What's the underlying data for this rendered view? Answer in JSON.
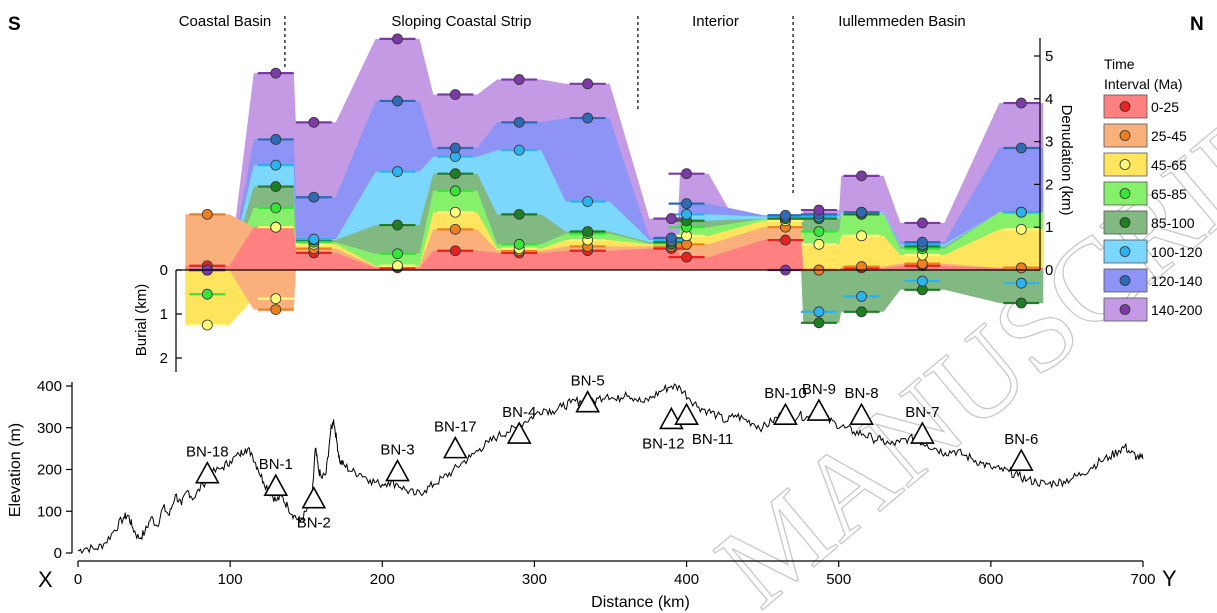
{
  "figure": {
    "corner_left": "S",
    "corner_right": "N",
    "profile_left_label": "X",
    "profile_right_label": "Y",
    "watermark": "MANUSCRIPT"
  },
  "chart_data": [
    {
      "type": "area",
      "regions": [
        "Coastal Basin",
        "Sloping Coastal Strip",
        "Interior",
        "Iullemmeden Basin"
      ],
      "region_boundaries_km": [
        136,
        368,
        470
      ],
      "ylabel_right": "Denudation (km)",
      "ylabel_left": "Burial (km)",
      "denudation_ticks": [
        "0",
        "1",
        "2",
        "3",
        "4",
        "5"
      ],
      "burial_ticks": [
        "0",
        "1",
        "2"
      ],
      "ylim_denudation": [
        0,
        5.4
      ],
      "ylim_burial": [
        0,
        2.3
      ],
      "legend_title": "Time Interval (Ma)",
      "legend_placement": "right",
      "series_order_bottom_to_top": [
        "0-25",
        "25-45",
        "45-65",
        "65-85",
        "85-100",
        "100-120",
        "120-140",
        "140-200"
      ],
      "colors": {
        "0-25": {
          "fill": "#ff8080",
          "dot": "#e8231f"
        },
        "25-45": {
          "fill": "#f9b07b",
          "dot": "#ef7e1c"
        },
        "45-65": {
          "fill": "#ffe45e",
          "dot": "#ffff7a"
        },
        "65-85": {
          "fill": "#86f06a",
          "dot": "#35e636"
        },
        "85-100": {
          "fill": "#82b882",
          "dot": "#1f7d22"
        },
        "100-120": {
          "fill": "#7bd7fb",
          "dot": "#2bb3ef"
        },
        "120-140": {
          "fill": "#8e93f6",
          "dot": "#2e6bb6"
        },
        "140-200": {
          "fill": "#c39ae3",
          "dot": "#7d3aa7"
        }
      },
      "samples": [
        {
          "x": 85,
          "denudation": [
            0.1,
            1.3,
            0,
            0,
            0,
            0,
            0,
            0
          ],
          "burial": [
            0,
            0,
            1.25,
            0.55,
            0,
            0,
            0,
            0
          ]
        },
        {
          "x": 130,
          "denudation": [
            1.0,
            1.0,
            1.0,
            1.45,
            1.95,
            2.45,
            3.05,
            4.6
          ],
          "burial": [
            0,
            0.9,
            0.65,
            0,
            0,
            0,
            0,
            0
          ]
        },
        {
          "x": 155,
          "denudation": [
            0.4,
            0.5,
            0.6,
            0.65,
            0.7,
            0.72,
            1.7,
            3.45
          ],
          "burial": [
            0,
            0,
            0,
            0,
            0,
            0,
            0,
            0
          ]
        },
        {
          "x": 210,
          "denudation": [
            0.05,
            0.08,
            0.1,
            0.38,
            1.05,
            2.3,
            3.95,
            5.4
          ],
          "burial": [
            0,
            0,
            0,
            0,
            0,
            0,
            0,
            0
          ]
        },
        {
          "x": 248,
          "denudation": [
            0.45,
            0.95,
            1.35,
            1.85,
            2.25,
            2.65,
            2.85,
            4.1
          ],
          "burial": [
            0,
            0,
            0,
            0,
            0,
            0,
            0,
            0
          ]
        },
        {
          "x": 290,
          "denudation": [
            0.4,
            0.45,
            0.5,
            0.6,
            1.3,
            2.8,
            3.45,
            4.45
          ],
          "burial": [
            0,
            0,
            0,
            0,
            0,
            0,
            0,
            0
          ]
        },
        {
          "x": 335,
          "denudation": [
            0.45,
            0.55,
            0.7,
            0.85,
            0.9,
            1.6,
            3.55,
            4.35
          ],
          "burial": [
            0,
            0,
            0,
            0,
            0,
            0,
            0,
            0
          ]
        },
        {
          "x": 390,
          "denudation": [
            0.5,
            0.55,
            0.6,
            0.62,
            0.65,
            0.7,
            0.75,
            1.2
          ],
          "burial": [
            0,
            0,
            0,
            0,
            0,
            0,
            0,
            0
          ]
        },
        {
          "x": 400,
          "denudation": [
            0.3,
            0.6,
            0.8,
            1.0,
            1.15,
            1.3,
            1.55,
            2.25
          ],
          "burial": [
            0,
            0,
            0,
            0,
            0,
            0,
            0,
            0
          ]
        },
        {
          "x": 465,
          "denudation": [
            0.7,
            1.0,
            1.15,
            1.2,
            1.2,
            1.25,
            1.28,
            0.0
          ],
          "burial": [
            0,
            0,
            0,
            0,
            0,
            0,
            0,
            0
          ]
        },
        {
          "x": 487,
          "denudation": [
            0.0,
            0.0,
            0.6,
            0.9,
            1.2,
            1.25,
            1.3,
            1.4
          ],
          "burial": [
            0,
            0,
            0,
            0,
            1.2,
            0.95,
            0,
            0
          ]
        },
        {
          "x": 515,
          "denudation": [
            0.05,
            0.08,
            0.8,
            1.3,
            1.3,
            1.35,
            1.35,
            2.2
          ],
          "burial": [
            0,
            0,
            0,
            0,
            0.95,
            0.6,
            0,
            0
          ]
        },
        {
          "x": 555,
          "denudation": [
            0.1,
            0.15,
            0.35,
            0.5,
            0.55,
            0.6,
            0.65,
            1.1
          ],
          "burial": [
            0,
            0,
            0,
            0,
            0.45,
            0.25,
            0,
            0
          ]
        },
        {
          "x": 620,
          "denudation": [
            0.05,
            0.05,
            0.95,
            1.35,
            1.35,
            1.35,
            2.85,
            3.9
          ],
          "burial": [
            0,
            0,
            0,
            0,
            0.75,
            0.3,
            0,
            0
          ]
        }
      ]
    },
    {
      "type": "line",
      "xlabel": "Distance (km)",
      "ylabel": "Elevation (m)",
      "xlim": [
        0,
        700
      ],
      "ylim": [
        0,
        400
      ],
      "xticks": [
        "0",
        "100",
        "200",
        "300",
        "400",
        "500",
        "600",
        "700"
      ],
      "yticks": [
        "0",
        "100",
        "200",
        "300",
        "400"
      ],
      "profile": [
        [
          0,
          5
        ],
        [
          5,
          12
        ],
        [
          12,
          10
        ],
        [
          18,
          25
        ],
        [
          24,
          55
        ],
        [
          30,
          85
        ],
        [
          33,
          90
        ],
        [
          36,
          60
        ],
        [
          40,
          35
        ],
        [
          44,
          50
        ],
        [
          48,
          85
        ],
        [
          52,
          65
        ],
        [
          56,
          110
        ],
        [
          60,
          90
        ],
        [
          64,
          140
        ],
        [
          68,
          115
        ],
        [
          72,
          150
        ],
        [
          76,
          130
        ],
        [
          82,
          165
        ],
        [
          88,
          190
        ],
        [
          95,
          205
        ],
        [
          100,
          220
        ],
        [
          106,
          235
        ],
        [
          110,
          250
        ],
        [
          114,
          240
        ],
        [
          118,
          205
        ],
        [
          122,
          170
        ],
        [
          126,
          150
        ],
        [
          130,
          125
        ],
        [
          134,
          135
        ],
        [
          138,
          110
        ],
        [
          142,
          90
        ],
        [
          146,
          75
        ],
        [
          150,
          100
        ],
        [
          154,
          140
        ],
        [
          156,
          250
        ],
        [
          158,
          200
        ],
        [
          160,
          180
        ],
        [
          163,
          190
        ],
        [
          166,
          290
        ],
        [
          168,
          320
        ],
        [
          170,
          270
        ],
        [
          172,
          220
        ],
        [
          175,
          210
        ],
        [
          180,
          195
        ],
        [
          186,
          190
        ],
        [
          192,
          175
        ],
        [
          198,
          165
        ],
        [
          204,
          170
        ],
        [
          210,
          165
        ],
        [
          216,
          150
        ],
        [
          222,
          140
        ],
        [
          228,
          150
        ],
        [
          234,
          165
        ],
        [
          240,
          180
        ],
        [
          246,
          195
        ],
        [
          252,
          215
        ],
        [
          258,
          230
        ],
        [
          264,
          250
        ],
        [
          270,
          265
        ],
        [
          276,
          280
        ],
        [
          282,
          290
        ],
        [
          288,
          300
        ],
        [
          294,
          315
        ],
        [
          300,
          330
        ],
        [
          306,
          345
        ],
        [
          312,
          340
        ],
        [
          318,
          350
        ],
        [
          324,
          360
        ],
        [
          330,
          365
        ],
        [
          336,
          355
        ],
        [
          342,
          370
        ],
        [
          348,
          380
        ],
        [
          354,
          365
        ],
        [
          360,
          385
        ],
        [
          366,
          370
        ],
        [
          372,
          360
        ],
        [
          378,
          375
        ],
        [
          384,
          390
        ],
        [
          390,
          400
        ],
        [
          396,
          395
        ],
        [
          402,
          370
        ],
        [
          408,
          350
        ],
        [
          414,
          340
        ],
        [
          420,
          330
        ],
        [
          426,
          315
        ],
        [
          432,
          330
        ],
        [
          438,
          320
        ],
        [
          444,
          310
        ],
        [
          450,
          300
        ],
        [
          456,
          315
        ],
        [
          462,
          330
        ],
        [
          468,
          320
        ],
        [
          474,
          330
        ],
        [
          480,
          325
        ],
        [
          486,
          335
        ],
        [
          492,
          320
        ],
        [
          498,
          310
        ],
        [
          504,
          300
        ],
        [
          510,
          290
        ],
        [
          516,
          285
        ],
        [
          522,
          275
        ],
        [
          528,
          270
        ],
        [
          534,
          260
        ],
        [
          540,
          265
        ],
        [
          546,
          275
        ],
        [
          552,
          270
        ],
        [
          558,
          260
        ],
        [
          564,
          250
        ],
        [
          570,
          240
        ],
        [
          576,
          245
        ],
        [
          582,
          235
        ],
        [
          588,
          225
        ],
        [
          594,
          215
        ],
        [
          600,
          205
        ],
        [
          606,
          200
        ],
        [
          612,
          195
        ],
        [
          618,
          185
        ],
        [
          624,
          175
        ],
        [
          630,
          170
        ],
        [
          636,
          165
        ],
        [
          642,
          168
        ],
        [
          648,
          172
        ],
        [
          654,
          180
        ],
        [
          660,
          190
        ],
        [
          666,
          205
        ],
        [
          672,
          220
        ],
        [
          678,
          230
        ],
        [
          684,
          245
        ],
        [
          688,
          255
        ],
        [
          692,
          240
        ],
        [
          696,
          230
        ],
        [
          700,
          225
        ]
      ],
      "samples": [
        {
          "label": "BN-18",
          "x": 85,
          "elevation": 190
        },
        {
          "label": "BN-1",
          "x": 130,
          "elevation": 160
        },
        {
          "label": "BN-2",
          "x": 155,
          "elevation": 130
        },
        {
          "label": "BN-3",
          "x": 210,
          "elevation": 195
        },
        {
          "label": "BN-17",
          "x": 248,
          "elevation": 250
        },
        {
          "label": "BN-4",
          "x": 290,
          "elevation": 285
        },
        {
          "label": "BN-5",
          "x": 335,
          "elevation": 360
        },
        {
          "label": "BN-12",
          "x": 390,
          "elevation": 320
        },
        {
          "label": "BN-11",
          "x": 400,
          "elevation": 330
        },
        {
          "label": "BN-10",
          "x": 465,
          "elevation": 330
        },
        {
          "label": "BN-9",
          "x": 487,
          "elevation": 340
        },
        {
          "label": "BN-8",
          "x": 515,
          "elevation": 330
        },
        {
          "label": "BN-7",
          "x": 555,
          "elevation": 285
        },
        {
          "label": "BN-6",
          "x": 620,
          "elevation": 220
        }
      ]
    }
  ]
}
